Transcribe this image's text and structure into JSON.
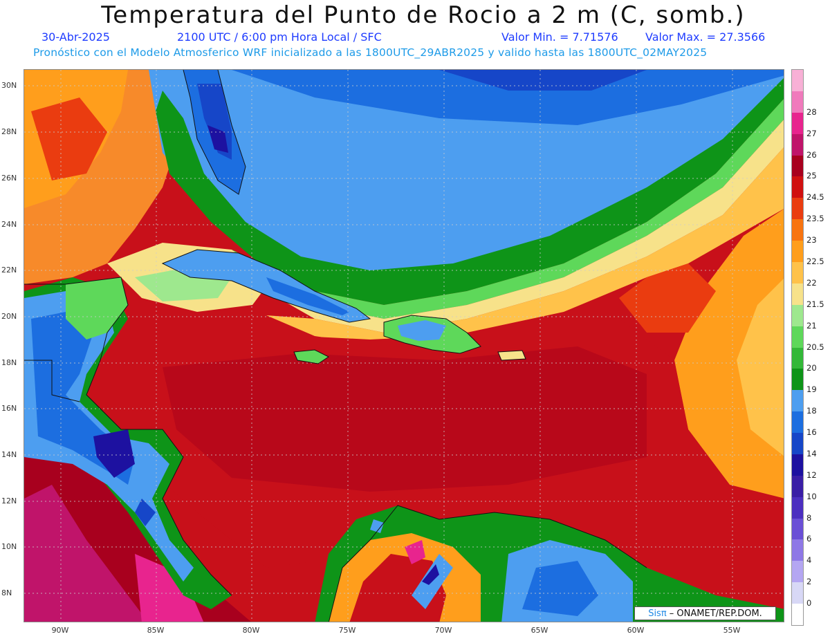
{
  "header": {
    "title": "Temperatura del Punto de Rocio a 2 m (C, somb.)",
    "date": "30-Abr-2025",
    "time_info": "2100 UTC / 6:00 pm Hora Local / SFC",
    "min_value": "Valor Min. = 7.71576",
    "max_value": "Valor Max. = 27.3566",
    "model_info": "Pronóstico con el Modelo Atmosferico WRF inicializado a las 1800UTC_29ABR2025 y valido hasta las  1800UTC_02MAY2025"
  },
  "map": {
    "lat_labels": [
      "30N",
      "28N",
      "26N",
      "24N",
      "22N",
      "20N",
      "18N",
      "16N",
      "14N",
      "12N",
      "10N",
      "8N"
    ],
    "lon_labels": [
      "90W",
      "85W",
      "80W",
      "75W",
      "70W",
      "65W",
      "60W",
      "55W"
    ]
  },
  "colorbar": {
    "levels": [
      "0",
      "2",
      "4",
      "6",
      "8",
      "10",
      "12",
      "14",
      "16",
      "18",
      "19",
      "20",
      "20.5",
      "21",
      "21.5",
      "22",
      "22.5",
      "23",
      "23.5",
      "24.5",
      "25",
      "26",
      "27",
      "28"
    ],
    "colors": [
      "#ffffff",
      "#d8d8f6",
      "#b4a6f2",
      "#8e78e6",
      "#6a4fd6",
      "#4c2fc0",
      "#3a1ea6",
      "#1d11a0",
      "#1646c8",
      "#1c6ee0",
      "#4d9ef0",
      "#0e9418",
      "#33b838",
      "#5ed85a",
      "#9ee88e",
      "#f7e28a",
      "#ffc24a",
      "#ff9e1c",
      "#f87410",
      "#ea3c10",
      "#d01010",
      "#a8001e",
      "#c0146a",
      "#e8248e",
      "#f07abc",
      "#f8b0d6"
    ]
  },
  "credit": {
    "logo": "Sisπ",
    "text": " – ONAMET/REP.DOM."
  }
}
